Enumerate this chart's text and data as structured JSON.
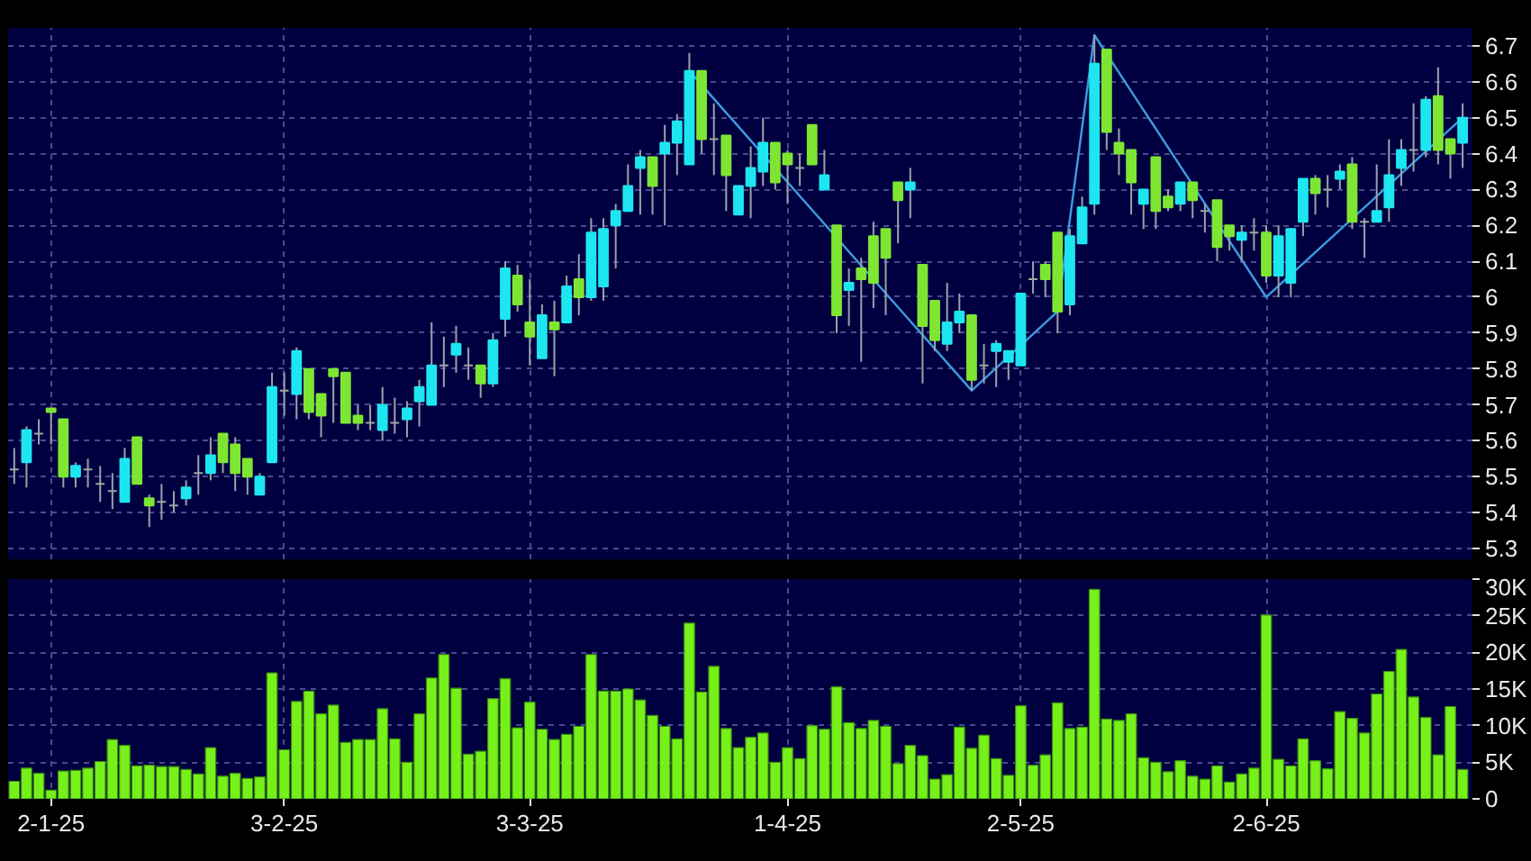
{
  "chart_data": [
    {
      "type": "candlestick",
      "categories": [
        null,
        null,
        null,
        null,
        null,
        null,
        null,
        null,
        null,
        null,
        null,
        null,
        null,
        null,
        null,
        null,
        null,
        null,
        null,
        null,
        null,
        null,
        null,
        null,
        null,
        null,
        null,
        null,
        null,
        null,
        null,
        null,
        null,
        null,
        null,
        null,
        null,
        null,
        null,
        null,
        null,
        null,
        null,
        null,
        null,
        null,
        null,
        null,
        null,
        null,
        null,
        null,
        null,
        null,
        null,
        null,
        null,
        null,
        null,
        null,
        null,
        null,
        null,
        null,
        null,
        null,
        null,
        null,
        null,
        null,
        null,
        null,
        null,
        null,
        null,
        null,
        null,
        null,
        null,
        null,
        null,
        null,
        null,
        null,
        null,
        null,
        null,
        null,
        null,
        null,
        null,
        null,
        null,
        null,
        null,
        null,
        null,
        null,
        null,
        null,
        null,
        null,
        null,
        null,
        null,
        null,
        null,
        null,
        null,
        null,
        null,
        null,
        null,
        null,
        null,
        null,
        null,
        null,
        null
      ],
      "ohlc": [
        [
          5.52,
          5.58,
          5.48,
          5.52
        ],
        [
          5.54,
          5.64,
          5.47,
          5.63
        ],
        [
          5.62,
          5.66,
          5.59,
          5.62
        ],
        [
          5.69,
          5.69,
          5.59,
          5.68
        ],
        [
          5.66,
          5.66,
          5.47,
          5.5
        ],
        [
          5.5,
          5.54,
          5.47,
          5.53
        ],
        [
          5.52,
          5.55,
          5.47,
          5.52
        ],
        [
          5.48,
          5.53,
          5.43,
          5.48
        ],
        [
          5.46,
          5.51,
          5.41,
          5.46
        ],
        [
          5.43,
          5.58,
          5.43,
          5.55
        ],
        [
          5.61,
          5.61,
          5.48,
          5.48
        ],
        [
          5.44,
          5.45,
          5.36,
          5.42
        ],
        [
          5.43,
          5.48,
          5.38,
          5.43
        ],
        [
          5.42,
          5.46,
          5.4,
          5.42
        ],
        [
          5.44,
          5.49,
          5.42,
          5.47
        ],
        [
          5.51,
          5.56,
          5.45,
          5.51
        ],
        [
          5.51,
          5.61,
          5.49,
          5.56
        ],
        [
          5.62,
          5.62,
          5.51,
          5.54
        ],
        [
          5.59,
          5.61,
          5.46,
          5.51
        ],
        [
          5.55,
          5.55,
          5.45,
          5.5
        ],
        [
          5.45,
          5.51,
          5.45,
          5.5
        ],
        [
          5.54,
          5.79,
          5.54,
          5.75
        ],
        [
          5.74,
          5.79,
          5.67,
          5.74
        ],
        [
          5.73,
          5.86,
          5.66,
          5.85
        ],
        [
          5.8,
          5.8,
          5.66,
          5.68
        ],
        [
          5.73,
          5.73,
          5.61,
          5.67
        ],
        [
          5.8,
          5.8,
          5.65,
          5.78
        ],
        [
          5.79,
          5.79,
          5.65,
          5.65
        ],
        [
          5.67,
          5.7,
          5.63,
          5.65
        ],
        [
          5.65,
          5.7,
          5.63,
          5.65
        ],
        [
          5.63,
          5.75,
          5.6,
          5.7
        ],
        [
          5.65,
          5.72,
          5.62,
          5.65
        ],
        [
          5.66,
          5.71,
          5.61,
          5.69
        ],
        [
          5.71,
          5.77,
          5.64,
          5.75
        ],
        [
          5.7,
          5.93,
          5.7,
          5.81
        ],
        [
          5.81,
          5.89,
          5.75,
          5.81
        ],
        [
          5.84,
          5.92,
          5.79,
          5.87
        ],
        [
          5.81,
          5.86,
          5.77,
          5.81
        ],
        [
          5.81,
          5.81,
          5.72,
          5.76
        ],
        [
          5.76,
          5.9,
          5.75,
          5.88
        ],
        [
          5.94,
          6.1,
          5.89,
          6.08
        ],
        [
          6.06,
          6.09,
          5.96,
          5.98
        ],
        [
          5.93,
          6.05,
          5.81,
          5.89
        ],
        [
          5.83,
          5.98,
          5.83,
          5.95
        ],
        [
          5.93,
          5.99,
          5.78,
          5.91
        ],
        [
          5.93,
          6.06,
          5.93,
          6.03
        ],
        [
          6.05,
          6.12,
          5.95,
          6.0
        ],
        [
          6.0,
          6.22,
          5.99,
          6.18
        ],
        [
          6.03,
          6.22,
          5.99,
          6.19
        ],
        [
          6.2,
          6.26,
          6.08,
          6.24
        ],
        [
          6.24,
          6.37,
          6.24,
          6.31
        ],
        [
          6.36,
          6.41,
          6.23,
          6.39
        ],
        [
          6.39,
          6.39,
          6.23,
          6.31
        ],
        [
          6.4,
          6.48,
          6.2,
          6.43
        ],
        [
          6.43,
          6.51,
          6.34,
          6.49
        ],
        [
          6.37,
          6.68,
          6.37,
          6.63
        ],
        [
          6.63,
          6.63,
          6.4,
          6.44
        ],
        [
          6.44,
          6.54,
          6.34,
          6.44
        ],
        [
          6.45,
          6.45,
          6.24,
          6.34
        ],
        [
          6.23,
          6.31,
          6.23,
          6.31
        ],
        [
          6.31,
          6.42,
          6.22,
          6.36
        ],
        [
          6.35,
          6.5,
          6.31,
          6.43
        ],
        [
          6.43,
          6.43,
          6.3,
          6.32
        ],
        [
          6.4,
          6.41,
          6.26,
          6.37
        ],
        [
          6.36,
          6.4,
          6.31,
          6.36
        ],
        [
          6.48,
          6.48,
          6.37,
          6.37
        ],
        [
          6.3,
          6.41,
          6.3,
          6.34
        ],
        [
          6.2,
          6.2,
          5.9,
          5.95
        ],
        [
          6.02,
          6.08,
          5.92,
          6.04
        ],
        [
          6.08,
          6.11,
          5.82,
          6.05
        ],
        [
          6.17,
          6.21,
          5.97,
          6.04
        ],
        [
          6.19,
          6.19,
          5.95,
          6.11
        ],
        [
          6.32,
          6.32,
          6.15,
          6.27
        ],
        [
          6.3,
          6.36,
          6.22,
          6.32
        ],
        [
          6.09,
          6.09,
          5.76,
          5.92
        ],
        [
          5.99,
          5.99,
          5.85,
          5.88
        ],
        [
          5.87,
          6.04,
          5.85,
          5.93
        ],
        [
          5.93,
          6.01,
          5.9,
          5.96
        ],
        [
          5.95,
          5.95,
          5.74,
          5.77
        ],
        [
          5.81,
          5.87,
          5.76,
          5.81
        ],
        [
          5.85,
          5.88,
          5.75,
          5.87
        ],
        [
          5.82,
          5.85,
          5.77,
          5.85
        ],
        [
          5.81,
          6.01,
          5.81,
          6.01
        ],
        [
          6.05,
          6.1,
          6.01,
          6.05
        ],
        [
          6.09,
          6.1,
          6.0,
          6.05
        ],
        [
          6.18,
          6.18,
          5.9,
          5.96
        ],
        [
          5.98,
          6.19,
          5.95,
          6.17
        ],
        [
          6.15,
          6.28,
          6.15,
          6.25
        ],
        [
          6.26,
          6.73,
          6.23,
          6.65
        ],
        [
          6.69,
          6.69,
          6.41,
          6.46
        ],
        [
          6.43,
          6.47,
          6.34,
          6.4
        ],
        [
          6.41,
          6.41,
          6.23,
          6.32
        ],
        [
          6.26,
          6.3,
          6.19,
          6.3
        ],
        [
          6.39,
          6.39,
          6.19,
          6.24
        ],
        [
          6.28,
          6.3,
          6.24,
          6.25
        ],
        [
          6.26,
          6.32,
          6.24,
          6.32
        ],
        [
          6.32,
          6.32,
          6.22,
          6.27
        ],
        [
          6.24,
          6.26,
          6.18,
          6.24
        ],
        [
          6.27,
          6.27,
          6.1,
          6.14
        ],
        [
          6.2,
          6.2,
          6.13,
          6.17
        ],
        [
          6.16,
          6.2,
          6.1,
          6.18
        ],
        [
          6.18,
          6.22,
          6.13,
          6.18
        ],
        [
          6.18,
          6.2,
          6.04,
          6.06
        ],
        [
          6.06,
          6.2,
          6.0,
          6.17
        ],
        [
          6.04,
          6.19,
          6.0,
          6.19
        ],
        [
          6.21,
          6.33,
          6.17,
          6.33
        ],
        [
          6.33,
          6.34,
          6.23,
          6.29
        ],
        [
          6.3,
          6.34,
          6.25,
          6.3
        ],
        [
          6.33,
          6.37,
          6.3,
          6.35
        ],
        [
          6.37,
          6.39,
          6.19,
          6.21
        ],
        [
          6.21,
          6.22,
          6.11,
          6.21
        ],
        [
          6.21,
          6.37,
          6.21,
          6.24
        ],
        [
          6.25,
          6.44,
          6.21,
          6.34
        ],
        [
          6.36,
          6.44,
          6.31,
          6.41
        ],
        [
          6.41,
          6.54,
          6.35,
          6.41
        ],
        [
          6.41,
          6.56,
          6.39,
          6.55
        ],
        [
          6.56,
          6.64,
          6.37,
          6.41
        ],
        [
          6.44,
          6.44,
          6.33,
          6.4
        ],
        [
          6.43,
          6.54,
          6.36,
          6.5
        ]
      ],
      "colors": [
        "#a0a8a0",
        "#1ee6f0",
        "#a0a8a0",
        "#7ee632",
        "#7ee632",
        "#1ee6f0",
        "#a0a8a0",
        "#a0a8a0",
        "#a0a8a0",
        "#1ee6f0",
        "#7ee632",
        "#7ee632",
        "#a0a8a0",
        "#a0a8a0",
        "#1ee6f0",
        "#a0a8a0",
        "#1ee6f0",
        "#7ee632",
        "#7ee632",
        "#7ee632",
        "#1ee6f0",
        "#1ee6f0",
        "#a0a8a0",
        "#1ee6f0",
        "#7ee632",
        "#7ee632",
        "#7ee632",
        "#7ee632",
        "#7ee632",
        "#a0a8a0",
        "#1ee6f0",
        "#a0a8a0",
        "#1ee6f0",
        "#1ee6f0",
        "#1ee6f0",
        "#a0a8a0",
        "#1ee6f0",
        "#a0a8a0",
        "#7ee632",
        "#1ee6f0",
        "#1ee6f0",
        "#7ee632",
        "#7ee632",
        "#1ee6f0",
        "#7ee632",
        "#1ee6f0",
        "#7ee632",
        "#1ee6f0",
        "#1ee6f0",
        "#1ee6f0",
        "#1ee6f0",
        "#1ee6f0",
        "#7ee632",
        "#1ee6f0",
        "#1ee6f0",
        "#1ee6f0",
        "#7ee632",
        "#a0a8a0",
        "#7ee632",
        "#1ee6f0",
        "#1ee6f0",
        "#1ee6f0",
        "#7ee632",
        "#7ee632",
        "#a0a8a0",
        "#7ee632",
        "#1ee6f0",
        "#7ee632",
        "#1ee6f0",
        "#7ee632",
        "#7ee632",
        "#7ee632",
        "#7ee632",
        "#1ee6f0",
        "#7ee632",
        "#7ee632",
        "#1ee6f0",
        "#1ee6f0",
        "#7ee632",
        "#a0a8a0",
        "#1ee6f0",
        "#1ee6f0",
        "#1ee6f0",
        "#a0a8a0",
        "#7ee632",
        "#7ee632",
        "#1ee6f0",
        "#1ee6f0",
        "#1ee6f0",
        "#7ee632",
        "#7ee632",
        "#7ee632",
        "#1ee6f0",
        "#7ee632",
        "#7ee632",
        "#1ee6f0",
        "#7ee632",
        "#a0a8a0",
        "#7ee632",
        "#7ee632",
        "#1ee6f0",
        "#a0a8a0",
        "#7ee632",
        "#1ee6f0",
        "#1ee6f0",
        "#1ee6f0",
        "#7ee632",
        "#a0a8a0",
        "#1ee6f0",
        "#7ee632",
        "#a0a8a0",
        "#1ee6f0",
        "#1ee6f0",
        "#1ee6f0",
        "#a0a8a0",
        "#1ee6f0",
        "#7ee632",
        "#7ee632",
        "#1ee6f0"
      ],
      "series": [
        {
          "type": "line",
          "color": "#3c9be0",
          "values": [
            null,
            null,
            null,
            null,
            null,
            null,
            null,
            null,
            null,
            null,
            null,
            null,
            null,
            null,
            null,
            null,
            null,
            null,
            null,
            null,
            null,
            null,
            null,
            null,
            null,
            null,
            null,
            null,
            null,
            null,
            null,
            null,
            null,
            null,
            null,
            null,
            null,
            null,
            null,
            null,
            null,
            null,
            null,
            null,
            null,
            null,
            null,
            null,
            null,
            null,
            null,
            null,
            null,
            null,
            null,
            6.63,
            null,
            null,
            null,
            null,
            null,
            null,
            null,
            null,
            null,
            null,
            null,
            null,
            null,
            null,
            null,
            null,
            null,
            null,
            null,
            null,
            null,
            null,
            5.74,
            null,
            null,
            null,
            null,
            null,
            null,
            5.96,
            null,
            null,
            6.73,
            null,
            null,
            null,
            null,
            null,
            null,
            null,
            null,
            null,
            null,
            null,
            null,
            null,
            6.0,
            null,
            null,
            null,
            null,
            null,
            null,
            null,
            null,
            null,
            null,
            null,
            null,
            null,
            null,
            null,
            6.5
          ]
        }
      ],
      "ylim": [
        5.27,
        6.75
      ],
      "yticks": [
        5.3,
        5.4,
        5.5,
        5.6,
        5.7,
        5.8,
        5.9,
        6,
        6.1,
        6.2,
        6.3,
        6.4,
        6.5,
        6.6,
        6.7
      ],
      "grid": true,
      "tick_labels": "y"
    },
    {
      "type": "bar",
      "categories": [
        null,
        null,
        null,
        "2-1-25",
        null,
        null,
        null,
        null,
        null,
        null,
        null,
        null,
        null,
        null,
        null,
        null,
        null,
        null,
        null,
        null,
        null,
        null,
        "3-2-25",
        null,
        null,
        null,
        null,
        null,
        null,
        null,
        null,
        null,
        null,
        null,
        null,
        null,
        null,
        null,
        null,
        null,
        null,
        null,
        "3-3-25",
        null,
        null,
        null,
        null,
        null,
        null,
        null,
        null,
        null,
        null,
        null,
        null,
        null,
        null,
        null,
        null,
        null,
        null,
        null,
        null,
        "1-4-25",
        null,
        null,
        null,
        null,
        null,
        null,
        null,
        null,
        null,
        null,
        null,
        null,
        null,
        null,
        null,
        null,
        null,
        null,
        "2-5-25",
        null,
        null,
        null,
        null,
        null,
        null,
        null,
        null,
        null,
        null,
        null,
        null,
        null,
        null,
        null,
        null,
        null,
        null,
        null,
        "2-6-25",
        null,
        null,
        null,
        null,
        null,
        null,
        null,
        null,
        null,
        null,
        null,
        null,
        null,
        null,
        null,
        null
      ],
      "series": [
        {
          "color": "#77f01a",
          "values": [
            2400,
            4200,
            3500,
            1200,
            3800,
            3900,
            4200,
            5100,
            8100,
            7300,
            4500,
            4600,
            4400,
            4400,
            4000,
            3400,
            7000,
            3100,
            3500,
            2800,
            3000,
            17200,
            6700,
            13300,
            14700,
            11600,
            12800,
            7700,
            8100,
            8100,
            12300,
            8200,
            5000,
            11600,
            16500,
            19700,
            15100,
            6100,
            6500,
            13700,
            16400,
            9700,
            13200,
            9500,
            8100,
            8800,
            9900,
            19700,
            14700,
            14700,
            15000,
            13500,
            11400,
            9900,
            8200,
            24000,
            14600,
            18100,
            9600,
            7000,
            8400,
            9000,
            5000,
            7000,
            5500,
            10000,
            9500,
            15300,
            10400,
            9600,
            10700,
            9900,
            4800,
            7300,
            5900,
            2700,
            3300,
            9800,
            6900,
            8700,
            5500,
            3200,
            12700,
            4600,
            6000,
            13100,
            9600,
            9800,
            28600,
            10900,
            10700,
            11600,
            5600,
            5000,
            3700,
            5200,
            3100,
            2700,
            4500,
            2300,
            3400,
            4200,
            25100,
            5400,
            4500,
            8200,
            5200,
            4100,
            11900,
            11000,
            9000,
            14300,
            17400,
            20400,
            13900,
            11100,
            6000,
            12600,
            4000
          ]
        }
      ],
      "ylim": [
        0,
        30000
      ],
      "yticks": [
        0,
        {
          "value": 5000,
          "label": "5K"
        },
        {
          "value": 10000,
          "label": "10K"
        },
        {
          "value": 15000,
          "label": "15K"
        },
        {
          "value": 20000,
          "label": "20K"
        },
        {
          "value": 25000,
          "label": "25K"
        },
        {
          "value": 30000,
          "label": "30K"
        }
      ],
      "grid": true
    }
  ]
}
